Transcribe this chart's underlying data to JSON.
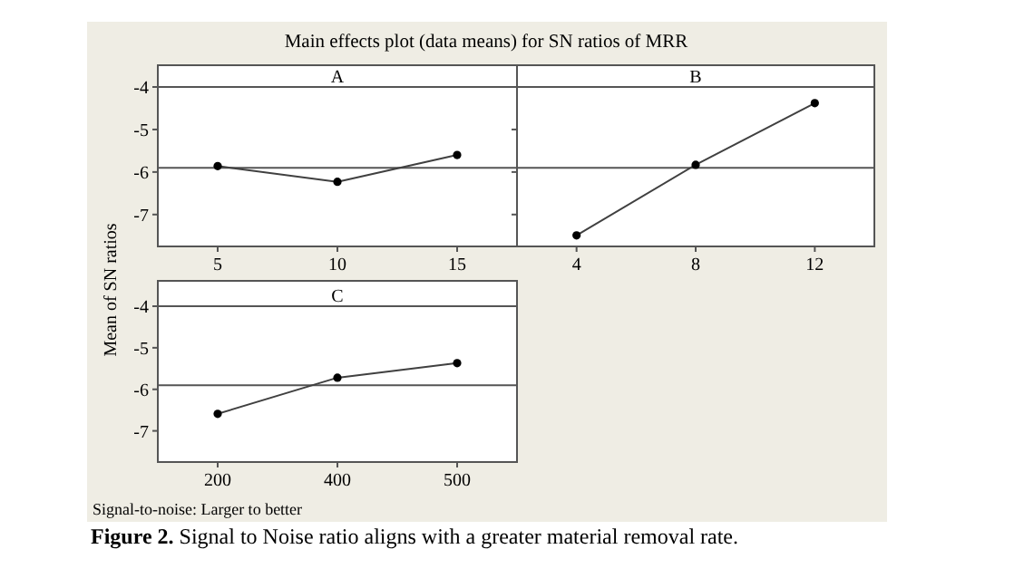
{
  "chart_data": [
    {
      "type": "line",
      "title": "A",
      "ylabel": "Mean of SN ratios",
      "annotations": [
        "Main effects plot (data means) for SN ratios of MRR"
      ],
      "categories": [
        "5",
        "10",
        "15"
      ],
      "series": [
        {
          "color": "#404040",
          "values": [
            -5.86,
            -6.23,
            -5.6
          ]
        }
      ],
      "ylim": [
        -7.75,
        -4
      ],
      "yticks": [
        -4,
        -5,
        -6,
        -7
      ],
      "ref_lines": [
        {
          "axis": "y",
          "value": -5.9,
          "color": "#555555"
        }
      ],
      "marker": "circle",
      "line_style": "solid"
    },
    {
      "type": "line",
      "title": "B",
      "categories": [
        "4",
        "8",
        "12"
      ],
      "series": [
        {
          "color": "#404040",
          "values": [
            -7.49,
            -5.83,
            -4.38
          ]
        }
      ],
      "ylim": [
        -7.75,
        -4
      ],
      "yticks": [
        -4,
        -5,
        -6,
        -7
      ],
      "ref_lines": [
        {
          "axis": "y",
          "value": -5.9,
          "color": "#555555"
        }
      ],
      "marker": "circle",
      "line_style": "solid",
      "tick_labels": "x"
    },
    {
      "type": "line",
      "title": "C",
      "annotations": [
        "Signal-to-noise: Larger to better",
        "Figure 2. Signal to Noise ratio aligns with a greater material removal rate."
      ],
      "categories": [
        "200",
        "400",
        "500"
      ],
      "series": [
        {
          "color": "#404040",
          "values": [
            -6.59,
            -5.72,
            -5.37
          ]
        }
      ],
      "ylim": [
        -7.75,
        -4
      ],
      "yticks": [
        -4,
        -5,
        -6,
        -7
      ],
      "ref_lines": [
        {
          "axis": "y",
          "value": -5.9,
          "color": "#555555"
        }
      ],
      "marker": "circle",
      "line_style": "solid"
    }
  ]
}
